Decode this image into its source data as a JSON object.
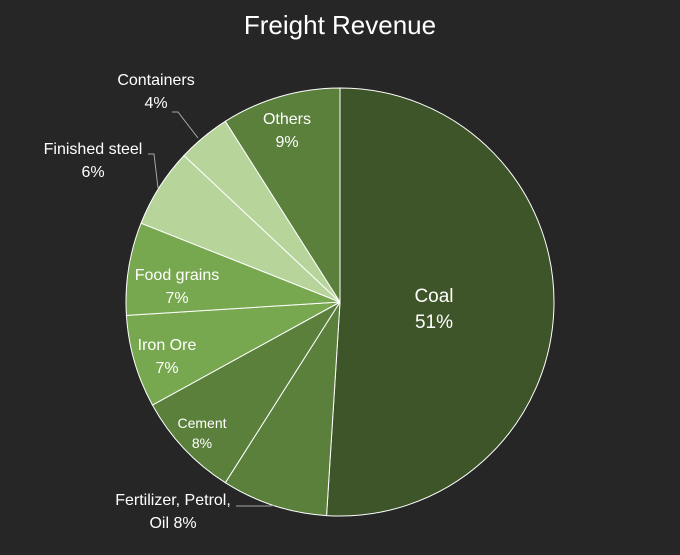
{
  "chart_data": {
    "type": "pie",
    "title": "Freight Revenue",
    "slices": [
      {
        "label": "Coal",
        "value": 51,
        "display": "51%",
        "color": "#3e5529"
      },
      {
        "label": "Fertilizer, Petrol, Oil",
        "value": 8,
        "display": "Oil 8%",
        "color": "#5a803b"
      },
      {
        "label": "Cement",
        "value": 8,
        "display": "8%",
        "color": "#5a803b"
      },
      {
        "label": "Iron Ore",
        "value": 7,
        "display": "7%",
        "color": "#77a84f"
      },
      {
        "label": "Food grains",
        "value": 7,
        "display": "7%",
        "color": "#77a84f"
      },
      {
        "label": "Finished steel",
        "value": 6,
        "display": "6%",
        "color": "#b7d49a"
      },
      {
        "label": "Containers",
        "value": 4,
        "display": "4%",
        "color": "#b7d49a"
      },
      {
        "label": "Others",
        "value": 9,
        "display": "9%",
        "color": "#5a803b"
      }
    ],
    "label_lines": {
      "fertilizer_line1": "Fertilizer, Petrol,"
    },
    "colors": {
      "background": "#262626",
      "text": "#ffffff",
      "slice_border": "#ffffff",
      "leader_line": "#a6a6a6"
    }
  }
}
